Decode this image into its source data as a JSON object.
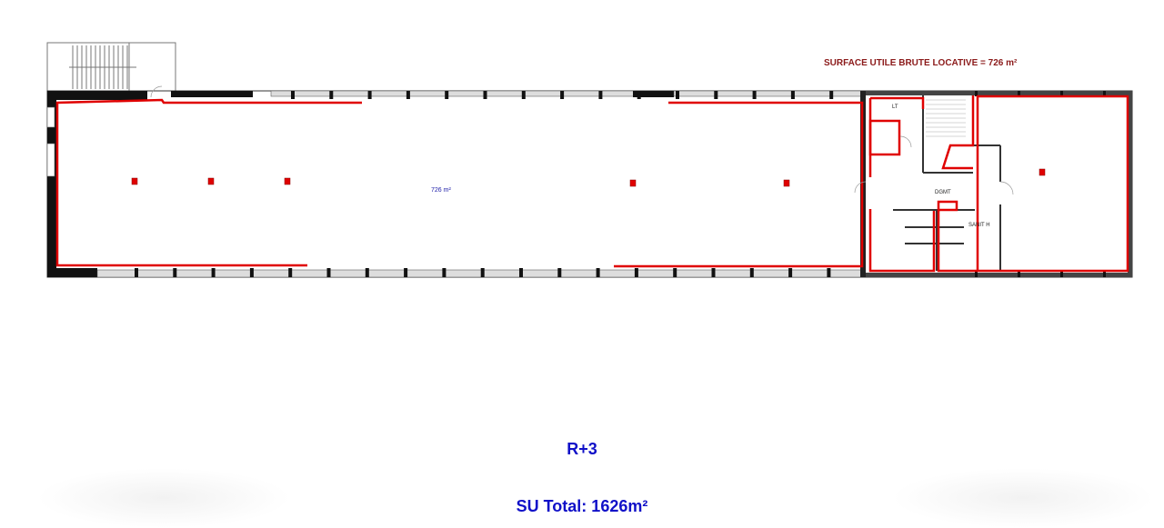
{
  "plan": {
    "surface_title": "SURFACE UTILE BRUTE LOCATIVE = 726 m²",
    "main_area_label": "726 m²",
    "rooms": {
      "lt": "LT",
      "dgmt": "DGMT",
      "sanit": "SANIT H"
    }
  },
  "footer": {
    "level": "R+3",
    "total": "SU Total: 1626m²"
  },
  "colors": {
    "surface_outline": "#e00000",
    "walls": "#111111",
    "title_text": "#8b1a1a",
    "footer_text": "#1010c8"
  }
}
